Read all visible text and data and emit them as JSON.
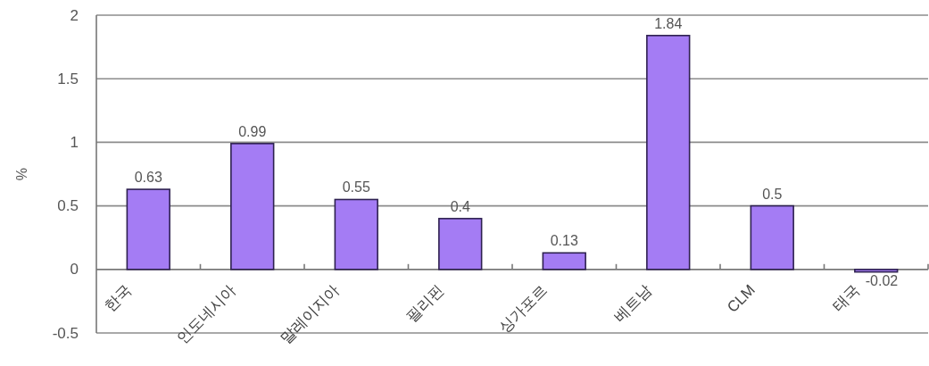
{
  "chart_data": {
    "type": "bar",
    "ylabel": "%",
    "categories": [
      "한국",
      "인도네시아",
      "말레이지아",
      "필리핀",
      "싱가포르",
      "베트남",
      "CLM",
      "태국"
    ],
    "values": [
      0.63,
      0.99,
      0.55,
      0.4,
      0.13,
      1.84,
      0.5,
      -0.02
    ],
    "color": "#a47cf4",
    "ylim": [
      -0.5,
      2
    ],
    "yticks": [
      -0.5,
      0,
      0.5,
      1,
      1.5,
      2
    ],
    "grid": "y",
    "data_labels": true
  }
}
